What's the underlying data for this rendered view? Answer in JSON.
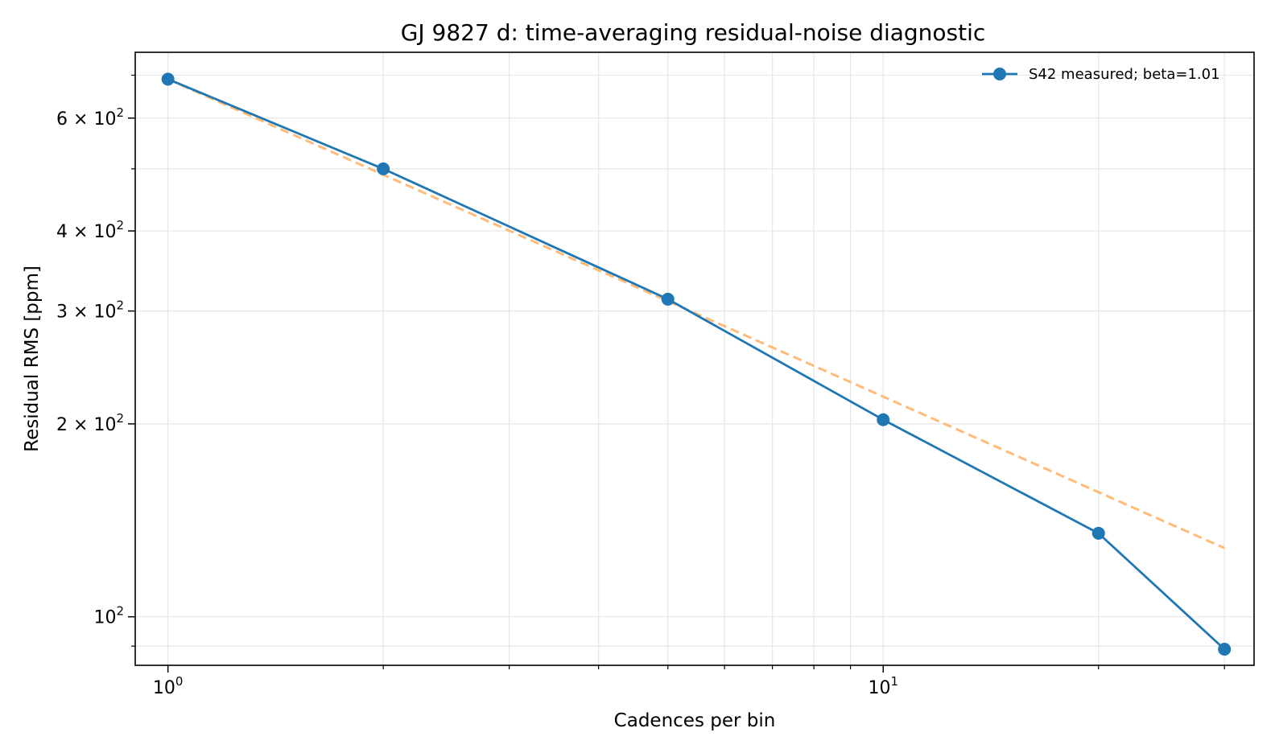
{
  "chart_data": {
    "type": "line",
    "title": "GJ 9827 d: time-averaging residual-noise diagnostic",
    "xlabel": "Cadences per bin",
    "ylabel": "Residual RMS [ppm]",
    "xscale": "log",
    "yscale": "log",
    "xlim": [
      0.9,
      33
    ],
    "ylim": [
      84,
      760
    ],
    "grid": true,
    "legend_position": "top-right",
    "x_major_ticks": [
      {
        "value": 1,
        "base": "10",
        "exp": "0"
      },
      {
        "value": 10,
        "base": "10",
        "exp": "1"
      }
    ],
    "y_major_ticks": [
      {
        "value": 100,
        "coef": "",
        "base": "10",
        "exp": "2"
      },
      {
        "value": 200,
        "coef": "2 × ",
        "base": "10",
        "exp": "2"
      },
      {
        "value": 300,
        "coef": "3 × ",
        "base": "10",
        "exp": "2"
      },
      {
        "value": 400,
        "coef": "4 × ",
        "base": "10",
        "exp": "2"
      },
      {
        "value": 600,
        "coef": "6 × ",
        "base": "10",
        "exp": "2"
      }
    ],
    "x_minor_ticks": [
      2,
      3,
      4,
      5,
      6,
      7,
      8,
      9,
      20,
      30
    ],
    "y_minor_ticks": [
      90,
      500,
      700
    ],
    "series": [
      {
        "name": "S42 measured; beta=1.01",
        "color": "#1f77b4",
        "style": "solid",
        "marker": "circle",
        "x": [
          1,
          2,
          5,
          10,
          20,
          30
        ],
        "y": [
          690,
          500,
          313,
          203,
          135,
          89
        ]
      },
      {
        "name": "",
        "color": "#ffbb78",
        "style": "dashed",
        "marker": "none",
        "x": [
          1,
          30
        ],
        "y": [
          690,
          128
        ]
      }
    ]
  }
}
